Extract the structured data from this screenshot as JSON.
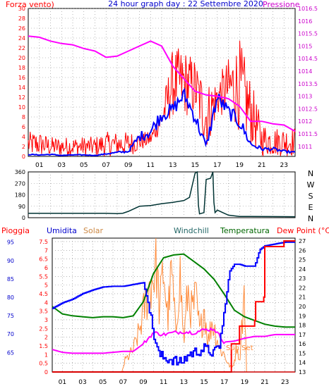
{
  "header": {
    "title": "24 hour graph day : 22 Settembre 2020",
    "left_label": "Forza vento)",
    "right_label": "Pressione"
  },
  "colors": {
    "wind_gust": "#ff0000",
    "wind_avg": "#0000ff",
    "pressure": "#ff00ff",
    "direction": "#003333",
    "humidity": "#0000ff",
    "solar": "#ff8c3c",
    "windchill": "#008000",
    "temperature": "#ff00ff",
    "dewpoint": "#ff0000",
    "rain": "#cc0000",
    "grid": "#888888",
    "frame": "#000000"
  },
  "chart_data": [
    {
      "type": "line",
      "name": "wind-pressure",
      "grid": true,
      "x_tick_labels": [
        "01",
        "03",
        "05",
        "07",
        "09",
        "11",
        "13",
        "15",
        "17",
        "19",
        "21",
        "23"
      ],
      "left_axis": {
        "label": "Forza vento)",
        "range": [
          0,
          30
        ],
        "ticks": [
          0,
          2,
          4,
          6,
          8,
          10,
          12,
          14,
          16,
          18,
          20,
          22,
          24,
          26,
          28,
          30
        ]
      },
      "right_axis": {
        "label": "Pressione",
        "range": [
          1010.6,
          1016.5
        ],
        "ticks": [
          "1011",
          "1011.5",
          "1012",
          "1012.5",
          "1013",
          "1013.5",
          "1014",
          "1014.5",
          "1015",
          "1015.5",
          "1016",
          "1016.5"
        ]
      },
      "series": [
        {
          "name": "Forza vento)",
          "style": "gust",
          "x": [
            0,
            1,
            2,
            3,
            4,
            5,
            6,
            7,
            8,
            9,
            10,
            11,
            12,
            13,
            14,
            15,
            16,
            17,
            18,
            19,
            20,
            21,
            22,
            23,
            24
          ],
          "values": [
            5,
            5,
            4,
            4,
            4,
            4,
            4,
            5,
            5,
            5,
            5,
            5,
            10,
            22,
            22,
            20,
            15,
            16,
            20,
            24,
            16,
            7,
            6,
            6,
            6
          ],
          "min": [
            0,
            0,
            0,
            0,
            0,
            0,
            0,
            0,
            0,
            0,
            1,
            2,
            5,
            8,
            8,
            8,
            1,
            8,
            8,
            5,
            2,
            0,
            0,
            0,
            0
          ]
        },
        {
          "name": "Forza vento)",
          "style": "average",
          "x": [
            0,
            1,
            2,
            3,
            4,
            5,
            6,
            7,
            8,
            9,
            10,
            11,
            12,
            13,
            14,
            15,
            16,
            17,
            18,
            19,
            20,
            21,
            22,
            23,
            24
          ],
          "values": [
            0.4,
            0.3,
            0.4,
            0.2,
            0.3,
            0.3,
            0.2,
            0.5,
            0.8,
            1.0,
            4.0,
            5.0,
            8.5,
            9.5,
            12.5,
            8.0,
            2.0,
            12.0,
            9.0,
            7.0,
            2.5,
            1.5,
            1.5,
            1.0,
            0.8
          ]
        },
        {
          "name": "Pressione",
          "axis": "right",
          "x": [
            0,
            1,
            2,
            3,
            4,
            5,
            6,
            7,
            8,
            9,
            10,
            11,
            12,
            13,
            14,
            15,
            16,
            17,
            18,
            19,
            20,
            21,
            22,
            23,
            24
          ],
          "values": [
            1015.4,
            1015.35,
            1015.2,
            1015.1,
            1015.05,
            1014.9,
            1014.8,
            1014.55,
            1014.6,
            1014.8,
            1015.0,
            1015.2,
            1015.0,
            1014.2,
            1013.7,
            1013.2,
            1013.05,
            1013.0,
            1012.9,
            1012.6,
            1012.0,
            1012.0,
            1011.9,
            1011.85,
            1011.6
          ]
        }
      ]
    },
    {
      "type": "line",
      "name": "wind-direction",
      "grid": true,
      "x_tick_labels": [
        "01",
        "03",
        "05",
        "07",
        "09",
        "11",
        "13",
        "15",
        "17",
        "19",
        "21",
        "23"
      ],
      "left_axis": {
        "range": [
          0,
          360
        ],
        "ticks": [
          0,
          90,
          180,
          270,
          360
        ]
      },
      "compass_labels": [
        "N",
        "W",
        "S",
        "E",
        "N"
      ],
      "series": [
        {
          "name": "",
          "x": [
            0,
            7,
            8,
            8.5,
            9,
            10,
            11,
            12,
            13,
            14,
            14.5,
            15,
            15.2,
            15.3,
            15.4,
            15.8,
            16.0,
            16.4,
            16.6,
            16.7,
            16.8,
            17,
            17.5,
            18,
            19,
            20,
            24
          ],
          "values": [
            35,
            35,
            32,
            35,
            50,
            90,
            95,
            110,
            120,
            135,
            160,
            350,
            360,
            100,
            30,
            40,
            300,
            310,
            360,
            120,
            40,
            60,
            40,
            20,
            10,
            10,
            8
          ]
        }
      ]
    },
    {
      "type": "line",
      "name": "weather",
      "grid": true,
      "x_tick_labels": [
        "01",
        "03",
        "05",
        "07",
        "09",
        "11",
        "13",
        "15",
        "17",
        "19",
        "21",
        "23"
      ],
      "legend": [
        "Pioggia",
        "Umidita",
        "Solar",
        "Windchill",
        "Temperatura",
        "Dew Point (°C)"
      ],
      "left_axes": [
        {
          "label": "Pioggia",
          "range": [
            0,
            7.7
          ],
          "ticks": [
            "0",
            "0.5",
            "1",
            "1.5",
            "2",
            "2.5",
            "3",
            "3.5",
            "4",
            "4.5",
            "5",
            "5.5",
            "6",
            "6.5",
            "7",
            "7.5"
          ]
        },
        {
          "label": "Umidita",
          "range": [
            59.7,
            96.1
          ],
          "ticks": [
            "65",
            "70",
            "75",
            "80",
            "85",
            "90",
            "95"
          ]
        }
      ],
      "right_axis": {
        "range": [
          13,
          27.3
        ],
        "ticks": [
          "13",
          "14",
          "15",
          "16",
          "17",
          "18",
          "19",
          "20",
          "21",
          "22",
          "23",
          "24",
          "25",
          "26",
          "27"
        ]
      },
      "annotation": "Sun Set",
      "series": [
        {
          "name": "Umidita",
          "x": [
            0,
            1,
            2,
            3,
            4,
            5,
            6,
            7,
            8,
            9,
            9.5,
            10,
            10.5,
            11,
            12,
            12.5,
            13,
            13.5,
            14,
            15,
            16,
            16.5,
            17,
            17.5,
            18,
            18.5,
            19,
            20,
            20.5,
            21,
            22,
            23,
            24
          ],
          "values": [
            77,
            78.5,
            79.5,
            81,
            82,
            82.8,
            83,
            83,
            83.5,
            84,
            78,
            70,
            64.5,
            63.5,
            63,
            62,
            63,
            64.5,
            65,
            66,
            64.8,
            67,
            76,
            87,
            89,
            89,
            88.5,
            88.5,
            93,
            94,
            94.5,
            95,
            95
          ]
        },
        {
          "name": "Windchill",
          "x": [
            0,
            1,
            2,
            3,
            4,
            5,
            6,
            7,
            8,
            9,
            10,
            11,
            12,
            13,
            14,
            15,
            16,
            17,
            18,
            19,
            20,
            21,
            22,
            23,
            24
          ],
          "values": [
            20.0,
            19.2,
            19.0,
            18.9,
            18.8,
            18.9,
            18.9,
            18.8,
            19.0,
            20.5,
            23.5,
            25.2,
            25.5,
            25.6,
            24.8,
            24.0,
            22.9,
            21.3,
            19.6,
            18.9,
            18.5,
            18.1,
            17.9,
            17.8,
            17.8
          ]
        },
        {
          "name": "Temperatura",
          "x": [
            0,
            1,
            2,
            3,
            4,
            5,
            6,
            7,
            8,
            9,
            10,
            11,
            12,
            13,
            14,
            15,
            16,
            17,
            18,
            19,
            20,
            21,
            22,
            23,
            24
          ],
          "values": [
            15.4,
            15.1,
            15.0,
            15.0,
            15.0,
            15.0,
            15.1,
            15.2,
            15.2,
            16.0,
            17.2,
            17.0,
            17.2,
            17.3,
            17.2,
            17.5,
            17.6,
            16.2,
            16.3,
            16.6,
            16.8,
            16.8,
            17.0,
            17.0,
            17.0
          ]
        },
        {
          "name": "Dew Point (°C)",
          "x": [
            0,
            17.5,
            17.7,
            18.5,
            20.0,
            20.1,
            20.9,
            21.0,
            22.8,
            22.9,
            24
          ],
          "values": [
            13.0,
            13.0,
            16.0,
            17.9,
            18.5,
            20.5,
            21.0,
            26.4,
            26.4,
            27.0,
            27.0
          ]
        },
        {
          "name": "Solar",
          "x": [
            0,
            6.9,
            7.0,
            7.2,
            7.5,
            8,
            8.5,
            9,
            9.5,
            10,
            10.3,
            10.6,
            11,
            11.4,
            11.8,
            12.2,
            12.6,
            13,
            13.4,
            13.8,
            14.2,
            14.6,
            15,
            15.4,
            15.8,
            16.2,
            16.6,
            17,
            17.4,
            17.8,
            18,
            18.3,
            18.5,
            18.7,
            19,
            19.2,
            24
          ],
          "values": [
            0,
            0,
            0.3,
            0.8,
            1.0,
            1.5,
            2.5,
            4.0,
            5.5,
            6.5,
            7.5,
            4.0,
            7.2,
            3.5,
            6.8,
            2.5,
            7.0,
            2.0,
            5.5,
            4.0,
            5.0,
            2.5,
            4.5,
            2.0,
            3.5,
            2.5,
            1.5,
            1.2,
            0.5,
            0.3,
            0.8,
            2.0,
            0.5,
            3.0,
            5.2,
            0,
            0
          ]
        },
        {
          "name": "Pioggia",
          "x": [
            0,
            24
          ],
          "values": [
            0,
            0
          ]
        }
      ]
    }
  ]
}
